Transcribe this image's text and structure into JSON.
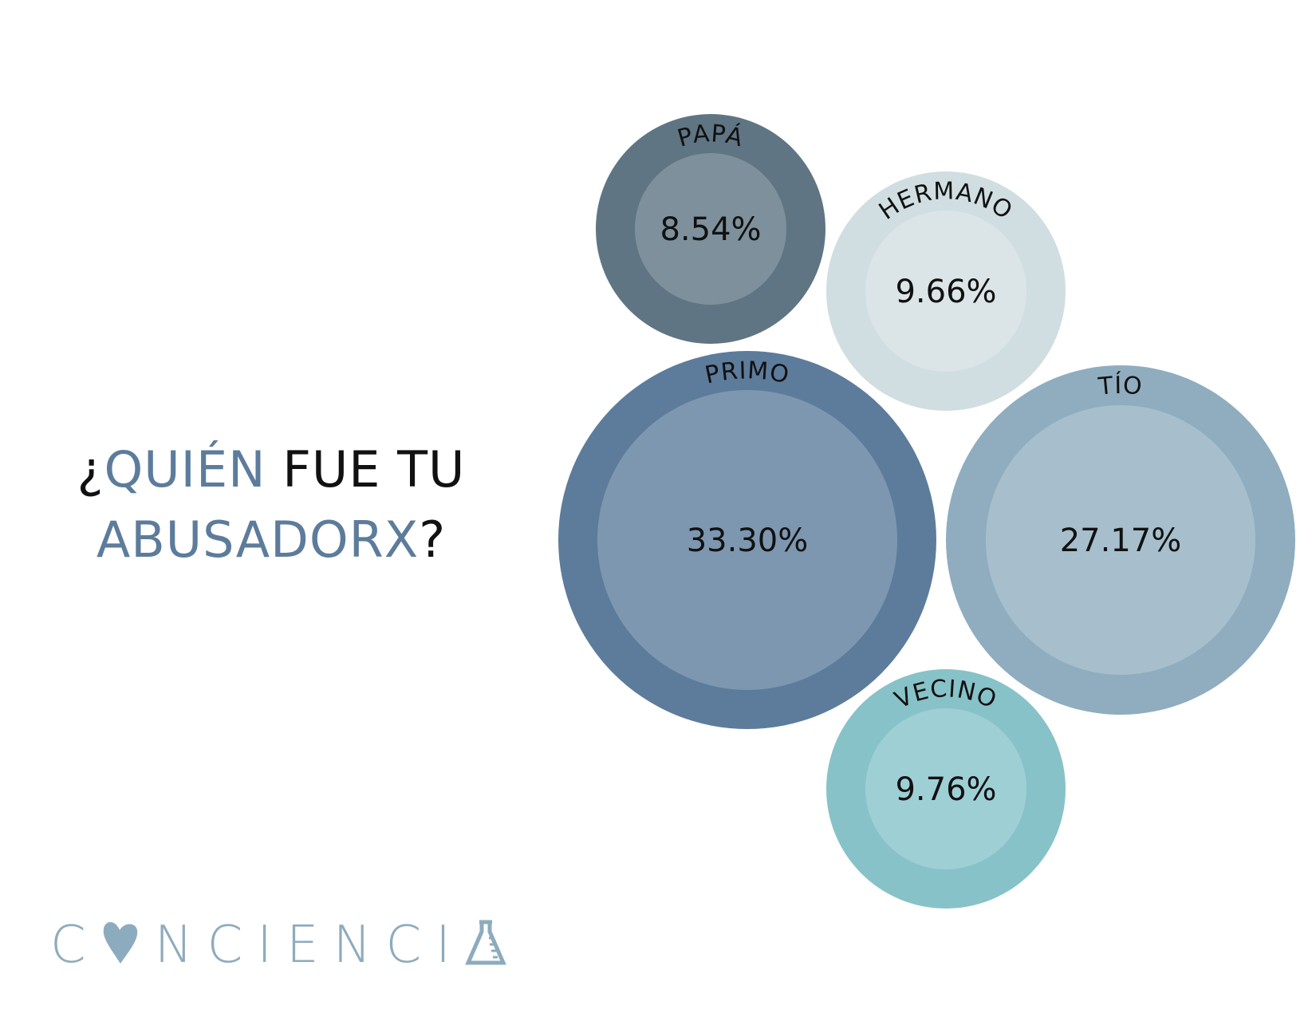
{
  "title": {
    "q_open": "¿",
    "highlight1": "QUIÉN",
    "plain": " FUE TU",
    "highlight2": "ABUSADORX",
    "q_close": "?"
  },
  "logo": {
    "text": "CONCIENCIA",
    "color": "#8dabbe"
  },
  "colors": {
    "title_accent": "#5d7c9c",
    "text": "#111111"
  },
  "chart_data": {
    "type": "bubble",
    "title": "¿QUIÉN FUE TU ABUSADORX?",
    "unit": "%",
    "series": [
      {
        "name": "PAPÁ",
        "value": 8.54,
        "label": "8.54%",
        "outer": "#5f7583",
        "inner": "#7e909b"
      },
      {
        "name": "HERMANO",
        "value": 9.66,
        "label": "9.66%",
        "outer": "#d0dee2",
        "inner": "#dbe5e7"
      },
      {
        "name": "PRIMO",
        "value": 33.3,
        "label": "33.30%",
        "outer": "#5d7c9c",
        "inner": "#7e97b0"
      },
      {
        "name": "TÍO",
        "value": 27.17,
        "label": "27.17%",
        "outer": "#8fadbf",
        "inner": "#a7bfcc"
      },
      {
        "name": "VECINO",
        "value": 9.76,
        "label": "9.76%",
        "outer": "#87c2c8",
        "inner": "#9ecfd5"
      }
    ]
  }
}
